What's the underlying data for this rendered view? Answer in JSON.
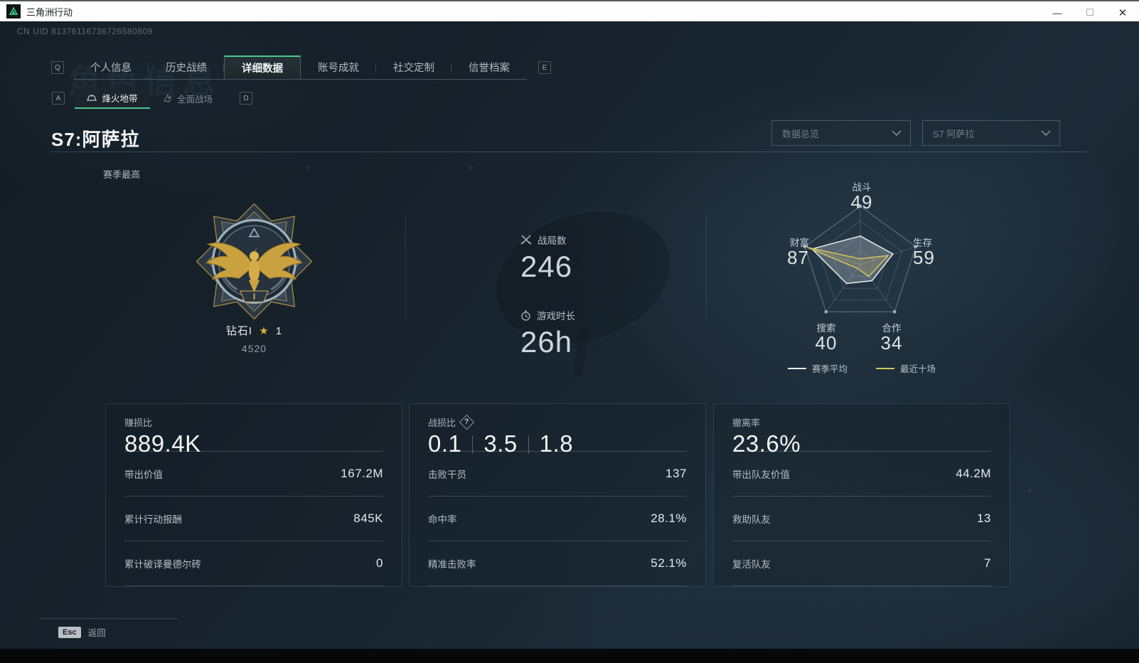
{
  "window": {
    "title": "三角洲行动",
    "minimize": "—",
    "maximize": "☐",
    "close": "✕"
  },
  "page": {
    "uid": "CN UID 81376116736726580809",
    "ghost_title": "角色信息",
    "key_hints": {
      "left_tab": "Q",
      "right_tab": "E",
      "left_subtab": "A",
      "right_subtab": "D"
    },
    "tabs": [
      {
        "label": "个人信息"
      },
      {
        "label": "历史战绩"
      },
      {
        "label": "详细数据"
      },
      {
        "label": "账号成就"
      },
      {
        "label": "社交定制"
      },
      {
        "label": "信誉档案"
      }
    ],
    "subtabs": [
      {
        "label": "烽火地带"
      },
      {
        "label": "全面战场"
      }
    ],
    "section_title": "S7:阿萨拉",
    "dropdowns": [
      {
        "value": "数据总览"
      },
      {
        "value": "S7 阿萨拉"
      }
    ],
    "footer": {
      "key": "Esc",
      "label": "返回"
    }
  },
  "season": {
    "best_label": "赛季最高",
    "rank_name": "钻石I",
    "rank_star_count": "1",
    "rank_points": "4520",
    "battles": {
      "label": "战局数",
      "value": "246"
    },
    "playtime": {
      "label": "游戏时长",
      "value": "26h"
    }
  },
  "chart_data": {
    "type": "radar",
    "categories": [
      "战斗",
      "生存",
      "合作",
      "搜索",
      "财富"
    ],
    "max": 100,
    "rings": 4,
    "series": [
      {
        "name": "赛季平均",
        "values": [
          49,
          59,
          34,
          40,
          87
        ],
        "color": "#e8eef2",
        "fill": "rgba(205,215,223,0.30)"
      },
      {
        "name": "最近十场",
        "values": [
          10,
          50,
          25,
          8,
          95
        ],
        "color": "#d8c45e",
        "fill": "rgba(216,196,94,0.18)"
      }
    ],
    "legend_position": "bottom",
    "legend": [
      {
        "label": "赛季平均",
        "color": "#e8eef2"
      },
      {
        "label": "最近十场",
        "color": "#d8c45e"
      }
    ]
  },
  "cards": [
    {
      "title": "赚损比",
      "value": "889.4K",
      "rows": [
        {
          "label": "带出价值",
          "value": "167.2M"
        },
        {
          "label": "累计行动报酬",
          "value": "845K"
        },
        {
          "label": "累计破译曼德尔砖",
          "value": "0"
        }
      ]
    },
    {
      "title": "战损比",
      "value_parts": [
        "0.1",
        "3.5",
        "1.8"
      ],
      "rows": [
        {
          "label": "击败干员",
          "value": "137"
        },
        {
          "label": "命中率",
          "value": "28.1%"
        },
        {
          "label": "精准击败率",
          "value": "52.1%"
        }
      ]
    },
    {
      "title": "撤离率",
      "value": "23.6%",
      "rows": [
        {
          "label": "带出队友价值",
          "value": "44.2M"
        },
        {
          "label": "救助队友",
          "value": "13"
        },
        {
          "label": "复活队友",
          "value": "7"
        }
      ]
    }
  ]
}
